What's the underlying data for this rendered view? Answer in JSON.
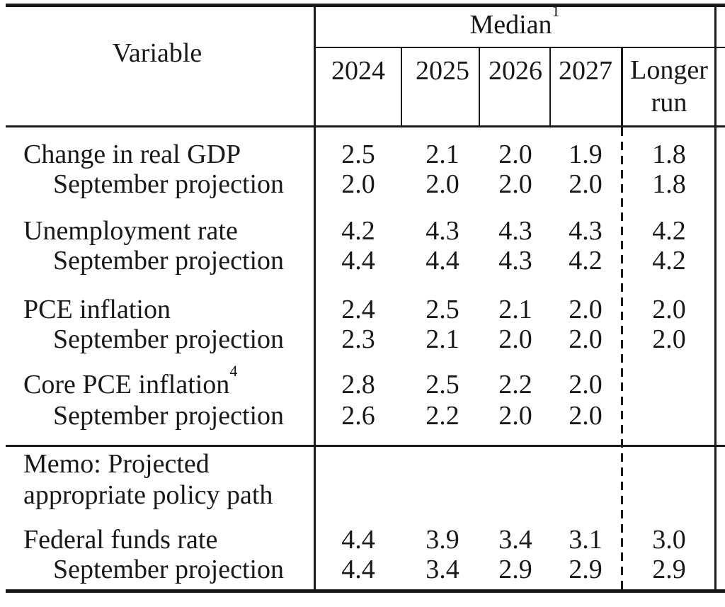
{
  "colors": {
    "ink": "#1a1a1a",
    "background": "#ffffff"
  },
  "table": {
    "header": {
      "variable_label": "Variable",
      "median_label": "Median",
      "median_sup": "1",
      "years": [
        "2024",
        "2025",
        "2026",
        "2027"
      ],
      "longer_run_label": "Longer run"
    },
    "rows": [
      {
        "label": "Change in real GDP",
        "values": [
          "2.5",
          "2.1",
          "2.0",
          "1.9",
          "1.8"
        ]
      },
      {
        "label": "September projection",
        "values": [
          "2.0",
          "2.0",
          "2.0",
          "2.0",
          "1.8"
        ]
      },
      {
        "label": "Unemployment rate",
        "values": [
          "4.2",
          "4.3",
          "4.3",
          "4.3",
          "4.2"
        ]
      },
      {
        "label": "September projection",
        "values": [
          "4.4",
          "4.4",
          "4.3",
          "4.2",
          "4.2"
        ]
      },
      {
        "label": "PCE inflation",
        "values": [
          "2.4",
          "2.5",
          "2.1",
          "2.0",
          "2.0"
        ]
      },
      {
        "label": "September projection",
        "values": [
          "2.3",
          "2.1",
          "2.0",
          "2.0",
          "2.0"
        ]
      },
      {
        "label": "Core PCE inflation",
        "sup": "4",
        "values": [
          "2.8",
          "2.5",
          "2.2",
          "2.0",
          ""
        ]
      },
      {
        "label": "September projection",
        "values": [
          "2.6",
          "2.2",
          "2.0",
          "2.0",
          ""
        ]
      },
      {
        "label": "Federal funds rate",
        "values": [
          "4.4",
          "3.9",
          "3.4",
          "3.1",
          "3.0"
        ]
      },
      {
        "label": "September projection",
        "values": [
          "4.4",
          "3.4",
          "2.9",
          "2.9",
          "2.9"
        ]
      }
    ],
    "memo": {
      "lines": [
        "Memo: Projected",
        "appropriate policy path"
      ]
    }
  }
}
